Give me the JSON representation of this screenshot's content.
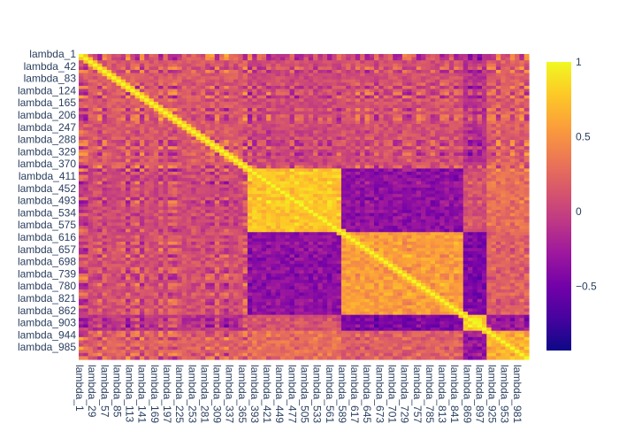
{
  "chart_data": {
    "type": "heatmap",
    "title": "",
    "xlabel": "",
    "ylabel": "",
    "y_tick_labels": [
      "lambda_1",
      "lambda_42",
      "lambda_83",
      "lambda_124",
      "lambda_165",
      "lambda_206",
      "lambda_247",
      "lambda_288",
      "lambda_329",
      "lambda_370",
      "lambda_411",
      "lambda_452",
      "lambda_493",
      "lambda_534",
      "lambda_575",
      "lambda_616",
      "lambda_657",
      "lambda_698",
      "lambda_739",
      "lambda_780",
      "lambda_821",
      "lambda_862",
      "lambda_903",
      "lambda_944",
      "lambda_985"
    ],
    "x_tick_labels": [
      "lambda_1",
      "lambda_29",
      "lambda_57",
      "lambda_85",
      "lambda_113",
      "lambda_141",
      "lambda_169",
      "lambda_197",
      "lambda_225",
      "lambda_253",
      "lambda_281",
      "lambda_309",
      "lambda_337",
      "lambda_365",
      "lambda_393",
      "lambda_421",
      "lambda_449",
      "lambda_477",
      "lambda_505",
      "lambda_533",
      "lambda_561",
      "lambda_589",
      "lambda_617",
      "lambda_645",
      "lambda_673",
      "lambda_701",
      "lambda_729",
      "lambda_757",
      "lambda_785",
      "lambda_813",
      "lambda_841",
      "lambda_869",
      "lambda_897",
      "lambda_925",
      "lambda_953",
      "lambda_981"
    ],
    "colorscale": [
      "#0d0887",
      "#46039f",
      "#7201a8",
      "#9c179e",
      "#bd3786",
      "#d8576b",
      "#ed7953",
      "#fb9f3a",
      "#fdca26",
      "#f0f921"
    ],
    "colorbar": {
      "range": [
        -0.93,
        1.0
      ],
      "ticks": [
        1,
        0.5,
        0,
        -0.5
      ],
      "tick_labels": [
        "1",
        "0.5",
        "0",
        "−0.5"
      ]
    },
    "diagonal_value": 1.0,
    "blocks": [
      {
        "rows": [
          "lambda_1",
          "lambda_370"
        ],
        "cols": [
          "lambda_1",
          "lambda_365"
        ],
        "approx_value": 0.2
      },
      {
        "rows": [
          "lambda_370",
          "lambda_575"
        ],
        "cols": [
          "lambda_365",
          "lambda_561"
        ],
        "approx_value": 0.75
      },
      {
        "rows": [
          "lambda_370",
          "lambda_575"
        ],
        "cols": [
          "lambda_589",
          "lambda_841"
        ],
        "approx_value": -0.3
      },
      {
        "rows": [
          "lambda_575",
          "lambda_821"
        ],
        "cols": [
          "lambda_365",
          "lambda_561"
        ],
        "approx_value": -0.4
      },
      {
        "rows": [
          "lambda_575",
          "lambda_821"
        ],
        "cols": [
          "lambda_589",
          "lambda_841"
        ],
        "approx_value": 0.6
      },
      {
        "rows": [
          "lambda_862",
          "lambda_903"
        ],
        "cols": [
          "lambda_869",
          "lambda_897"
        ],
        "approx_value": -0.9
      },
      {
        "rows": [
          "lambda_862",
          "lambda_903"
        ],
        "cols": [
          "lambda_925",
          "lambda_981"
        ],
        "approx_value": 0.8
      }
    ]
  }
}
